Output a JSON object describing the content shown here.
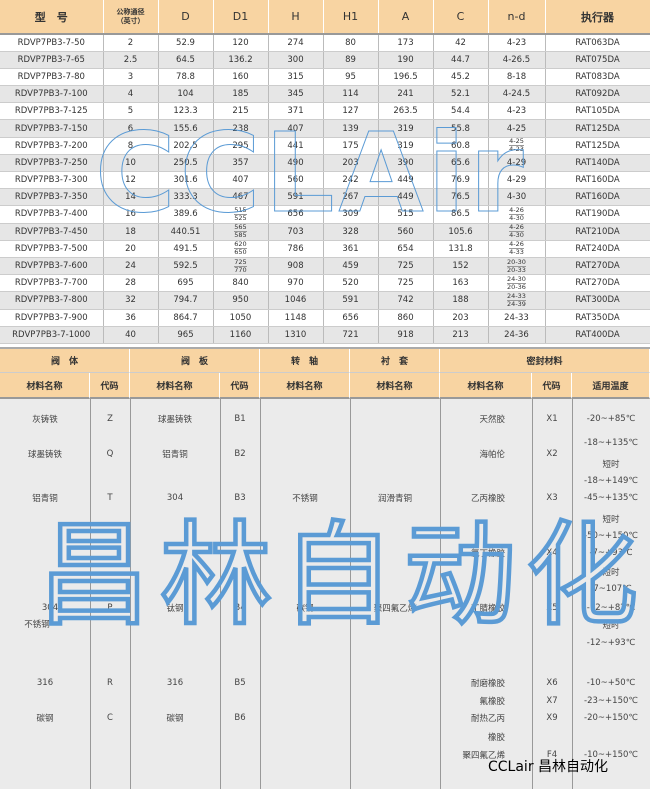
{
  "spec_table": {
    "headers": [
      "型　号",
      "公称通径\n（英寸）",
      "D",
      "D1",
      "H",
      "H1",
      "A",
      "C",
      "n-d",
      "执行器"
    ],
    "rows": [
      [
        "RDVP7PB3-7-50",
        "2",
        "52.9",
        "120",
        "274",
        "80",
        "173",
        "42",
        "4-23",
        "RAT063DA"
      ],
      [
        "RDVP7PB3-7-65",
        "2.5",
        "64.5",
        "136.2",
        "300",
        "89",
        "190",
        "44.7",
        "4-26.5",
        "RAT075DA"
      ],
      [
        "RDVP7PB3-7-80",
        "3",
        "78.8",
        "160",
        "315",
        "95",
        "196.5",
        "45.2",
        "8-18",
        "RAT083DA"
      ],
      [
        "RDVP7PB3-7-100",
        "4",
        "104",
        "185",
        "345",
        "114",
        "241",
        "52.1",
        "4-24.5",
        "RAT092DA"
      ],
      [
        "RDVP7PB3-7-125",
        "5",
        "123.3",
        "215",
        "371",
        "127",
        "263.5",
        "54.4",
        "4-23",
        "RAT105DA"
      ],
      [
        "RDVP7PB3-7-150",
        "6",
        "155.6",
        "238",
        "407",
        "139",
        "319",
        "55.8",
        "4-25",
        "RAT125DA"
      ],
      [
        "RDVP7PB3-7-200",
        "8",
        "202.5",
        "295",
        "441",
        "175",
        "319",
        "60.8",
        [
          "4-25",
          "4-23"
        ],
        "RAT125DA"
      ],
      [
        "RDVP7PB3-7-250",
        "10",
        "250.5",
        "357",
        "490",
        "203",
        "390",
        "65.6",
        "4-29",
        "RAT140DA"
      ],
      [
        "RDVP7PB3-7-300",
        "12",
        "301.6",
        "407",
        "560",
        "242",
        "449",
        "76.9",
        "4-29",
        "RAT160DA"
      ],
      [
        "RDVP7PB3-7-350",
        "14",
        "333.3",
        "467",
        "591",
        "267",
        "449",
        "76.5",
        "4-30",
        "RAT160DA"
      ],
      [
        "RDVP7PB3-7-400",
        "16",
        "389.6",
        [
          "515",
          "525"
        ],
        "656",
        "309",
        "515",
        "86.5",
        [
          "4-26",
          "4-30"
        ],
        "RAT190DA"
      ],
      [
        "RDVP7PB3-7-450",
        "18",
        "440.51",
        [
          "565",
          "585"
        ],
        "703",
        "328",
        "560",
        "105.6",
        [
          "4-26",
          "4-30"
        ],
        "RAT210DA"
      ],
      [
        "RDVP7PB3-7-500",
        "20",
        "491.5",
        [
          "620",
          "650"
        ],
        "786",
        "361",
        "654",
        "131.8",
        [
          "4-26",
          "4-33"
        ],
        "RAT240DA"
      ],
      [
        "RDVP7PB3-7-600",
        "24",
        "592.5",
        [
          "725",
          "770"
        ],
        "908",
        "459",
        "725",
        "152",
        [
          "20-30",
          "20-33"
        ],
        "RAT270DA"
      ],
      [
        "RDVP7PB3-7-700",
        "28",
        "695",
        "840",
        "970",
        "520",
        "725",
        "163",
        [
          "24-30",
          "20-36"
        ],
        "RAT270DA"
      ],
      [
        "RDVP7PB3-7-800",
        "32",
        "794.7",
        "950",
        "1046",
        "591",
        "742",
        "188",
        [
          "24-33",
          "24-39"
        ],
        "RAT300DA"
      ],
      [
        "RDVP7PB3-7-900",
        "36",
        "864.7",
        "1050",
        "1148",
        "656",
        "860",
        "203",
        "24-33",
        "RAT350DA"
      ],
      [
        "RDVP7PB3-7-1000",
        "40",
        "965",
        "1160",
        "1310",
        "721",
        "918",
        "213",
        "24-36",
        "RAT400DA"
      ]
    ]
  },
  "material_table": {
    "groups": [
      "阀　体",
      "阀　板",
      "转　轴",
      "衬　套",
      "密封材料"
    ],
    "subheaders": [
      "材料名称",
      "代码",
      "材料名称",
      "代码",
      "材料名称",
      "材料名称",
      "材料名称",
      "代码",
      "适用温度"
    ],
    "columns": [
      [
        "灰铸铁",
        "球墨铸铁",
        "铝青铜",
        "304",
        "不锈钢",
        "316",
        "碳钢"
      ],
      [
        "Z",
        "Q",
        "T",
        "P",
        "R",
        "C"
      ],
      [
        "球墨铸铁",
        "铝青铜",
        "304",
        "钛钢",
        "316",
        "碳钢"
      ],
      [
        "B1",
        "B2",
        "B3",
        "B4",
        "B5",
        "B6"
      ],
      [
        "不锈钢",
        "碳钢"
      ],
      [
        "润滑青铜",
        "聚四氟乙烯"
      ],
      [
        "天然胶",
        "海帕伦",
        "乙丙橡胶",
        "氯丁橡胶",
        "丁腈橡胶",
        "耐磨橡胶",
        "氟橡胶",
        "耐热乙丙",
        "橡胶",
        "聚四氟乙烯"
      ],
      [
        "X1",
        "X2",
        "X3",
        "X4",
        "X5",
        "X6",
        "X7",
        "X9",
        "F4"
      ],
      [
        "-20~+85℃",
        "-18~+135℃",
        "短时",
        "-18~+149℃",
        "-45~+135℃",
        "短时",
        "-50~+150℃",
        "-7~+93℃",
        "短时",
        "-7~107℃",
        "-12~+82℃",
        "短时",
        "-12~+93℃",
        "-10~+50℃",
        "-23~+150℃",
        "-20~+150℃",
        "-10~+150℃"
      ]
    ]
  },
  "watermarks": {
    "top": "CCLAir",
    "bottom": "昌林自动化"
  },
  "brand": "CCLair 昌林自动化",
  "colors": {
    "header_bg": "#f8d4a2",
    "alt_row": "#e6e6e6",
    "watermark": "#5b9bd5"
  }
}
